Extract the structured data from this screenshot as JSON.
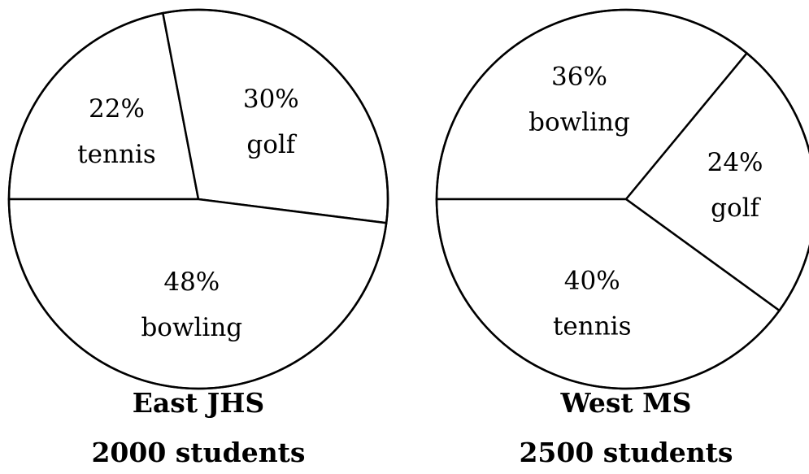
{
  "chart_data": [
    {
      "type": "pie",
      "title": "East JHS",
      "subtitle": "2000 students",
      "slices": [
        {
          "label": "tennis",
          "value_label": "22%",
          "value": 22
        },
        {
          "label": "golf",
          "value_label": "30%",
          "value": 30
        },
        {
          "label": "bowling",
          "value_label": "48%",
          "value": 48
        }
      ],
      "style": {
        "fill": "#ffffff",
        "stroke": "#000000"
      }
    },
    {
      "type": "pie",
      "title": "West MS",
      "subtitle": "2500 students",
      "slices": [
        {
          "label": "bowling",
          "value_label": "36%",
          "value": 36
        },
        {
          "label": "golf",
          "value_label": "24%",
          "value": 24
        },
        {
          "label": "tennis",
          "value_label": "40%",
          "value": 40
        }
      ],
      "style": {
        "fill": "#ffffff",
        "stroke": "#000000"
      }
    }
  ]
}
